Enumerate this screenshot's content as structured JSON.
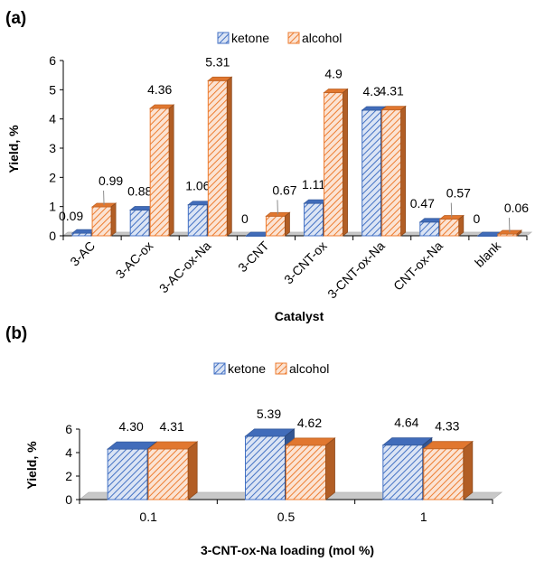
{
  "chart_data": [
    {
      "panel_label": "(a)",
      "type": "bar",
      "style": "3d-clustered",
      "categories": [
        "3-AC",
        "3-AC-ox",
        "3-AC-ox-Na",
        "3-CNT",
        "3-CNT-ox",
        "3-CNT-ox-Na",
        "CNT-ox-Na",
        "blank"
      ],
      "series": [
        {
          "name": "ketone",
          "values": [
            0.09,
            0.88,
            1.06,
            0,
            1.11,
            4.3,
            0.47,
            0
          ],
          "labels": [
            "0.09",
            "0.88",
            "1.06",
            "0",
            "1.11",
            "4.3",
            "0.47",
            "0"
          ],
          "color": "#4472C4"
        },
        {
          "name": "alcohol",
          "values": [
            0.99,
            4.36,
            5.31,
            0.67,
            4.9,
            4.31,
            0.57,
            0.06
          ],
          "labels": [
            "0.99",
            "4.36",
            "5.31",
            "0.67",
            "4.9",
            "4.31",
            "0.57",
            "0.06"
          ],
          "color": "#ED7D31"
        }
      ],
      "ylabel": "Yield, %",
      "xlabel": "Catalyst",
      "ylim": [
        0,
        6
      ],
      "yticks": [
        "0",
        "1",
        "2",
        "3",
        "4",
        "5",
        "6"
      ],
      "legend": "top",
      "grid": false
    },
    {
      "panel_label": "(b)",
      "type": "bar",
      "style": "3d-clustered",
      "categories": [
        "0.1",
        "0.5",
        "1"
      ],
      "series": [
        {
          "name": "ketone",
          "values": [
            4.3,
            5.39,
            4.64
          ],
          "labels": [
            "4.30",
            "5.39",
            "4.64"
          ],
          "color": "#4472C4"
        },
        {
          "name": "alcohol",
          "values": [
            4.31,
            4.62,
            4.33
          ],
          "labels": [
            "4.31",
            "4.62",
            "4.33"
          ],
          "color": "#ED7D31"
        }
      ],
      "ylabel": "Yield, %",
      "xlabel": "3-CNT-ox-Na loading (mol %)",
      "ylim": [
        0,
        6
      ],
      "yticks": [
        "0",
        "2",
        "4",
        "6"
      ],
      "legend": "top",
      "grid": false
    }
  ]
}
